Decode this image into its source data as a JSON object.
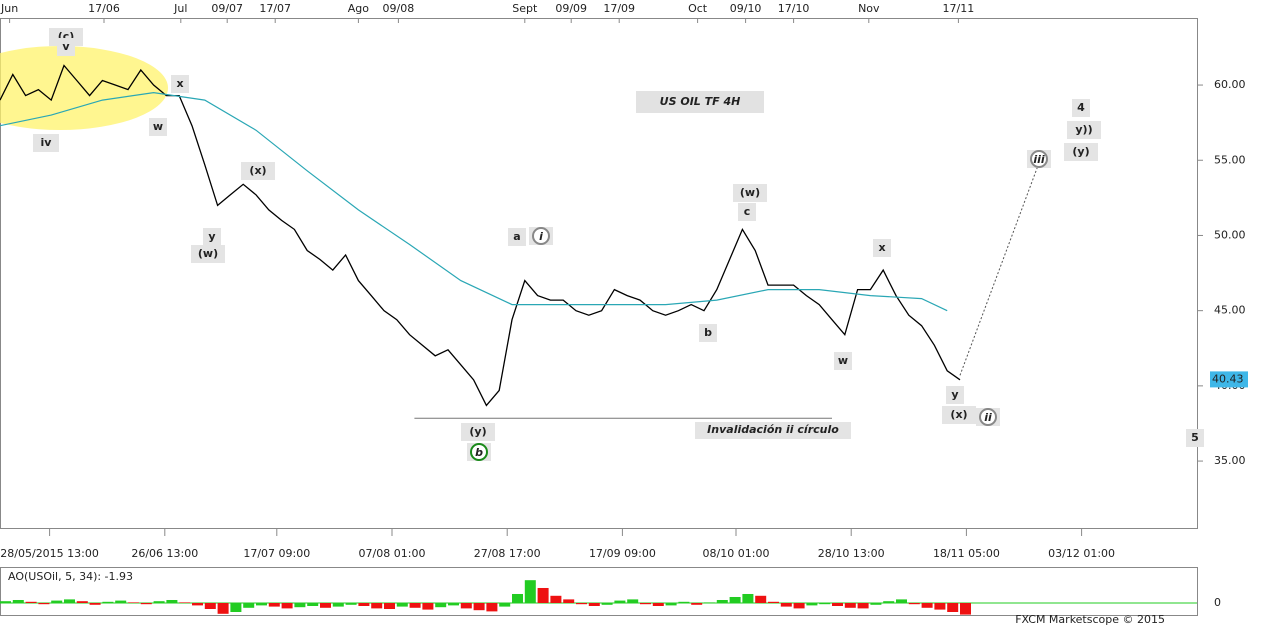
{
  "chart_data": [
    {
      "type": "line",
      "title": "US OIL TF 4H",
      "title_color": "#1a1acc",
      "series": [
        {
          "color": "#000000",
          "width": 1.3,
          "x": [
            0,
            8,
            16,
            24,
            32,
            40,
            48,
            56,
            64,
            72,
            80,
            88,
            96,
            104,
            112,
            120,
            128,
            136,
            144,
            152,
            160,
            168,
            176,
            184,
            192,
            200,
            208,
            216,
            224,
            232,
            240,
            248,
            256,
            264,
            272,
            280,
            288,
            296,
            304,
            312,
            320,
            328,
            336,
            344,
            352,
            360,
            368,
            376,
            384,
            392,
            400,
            408,
            416,
            424,
            432,
            440,
            448,
            456,
            464,
            472,
            480,
            488,
            496,
            504,
            512,
            520,
            528,
            536,
            544,
            552,
            560,
            568,
            576,
            584,
            592,
            600
          ],
          "values": [
            59.0,
            60.7,
            59.3,
            59.7,
            59.0,
            61.3,
            60.3,
            59.3,
            60.3,
            60.0,
            59.7,
            61.0,
            60.0,
            59.3,
            59.3,
            57.3,
            54.7,
            52.0,
            52.7,
            53.4,
            52.7,
            51.7,
            51.0,
            50.4,
            49.0,
            48.4,
            47.7,
            48.7,
            47.0,
            46.0,
            45.0,
            44.4,
            43.4,
            42.7,
            42.0,
            42.4,
            41.4,
            40.4,
            38.7,
            39.7,
            44.4,
            47.0,
            46.0,
            45.7,
            45.7,
            45.0,
            44.7,
            45.0,
            46.4,
            46.0,
            45.7,
            45.0,
            44.7,
            45.0,
            45.4,
            45.0,
            46.4,
            48.4,
            50.4,
            49.0,
            46.7,
            46.7,
            46.7,
            46.0,
            45.4,
            44.4,
            43.4,
            46.4,
            46.4,
            47.7,
            46.0,
            44.7,
            44.0,
            42.7,
            41.0,
            40.4
          ]
        },
        {
          "color": "#2aa7b5",
          "width": 1.2,
          "x": [
            0,
            32,
            64,
            96,
            128,
            160,
            192,
            224,
            256,
            288,
            320,
            352,
            384,
            416,
            448,
            480,
            512,
            544,
            576,
            592
          ],
          "values": [
            57.3,
            58.0,
            59.0,
            59.5,
            59.0,
            57.0,
            54.3,
            51.7,
            49.4,
            47.0,
            45.4,
            45.4,
            45.4,
            45.4,
            45.7,
            46.4,
            46.4,
            46.0,
            45.8,
            45.0
          ]
        },
        {
          "color": "#555555",
          "width": 1,
          "dash": true,
          "x": [
            600,
            650
          ],
          "values": [
            40.7,
            55.0
          ]
        },
        {
          "color": "#777777",
          "width": 1,
          "x": [
            259,
            520
          ],
          "values": [
            37.85,
            37.85
          ]
        }
      ],
      "last_price": {
        "value": 40.43,
        "label": "40.43",
        "color": "#3fb7e8"
      },
      "xlim": [
        0,
        748
      ],
      "ylim": [
        30.55,
        63.66
      ],
      "yticks": [
        {
          "value": 35,
          "label": "35.00"
        },
        {
          "value": 40,
          "label": "40.00"
        },
        {
          "value": 45,
          "label": "45.00"
        },
        {
          "value": 50,
          "label": "50.00"
        },
        {
          "value": 55,
          "label": "55.00"
        },
        {
          "value": 60,
          "label": "60.00"
        }
      ],
      "xticks": [
        {
          "value": 31,
          "label": "28/05/2015 13:00"
        },
        {
          "value": 103,
          "label": "26/06 13:00"
        },
        {
          "value": 173,
          "label": "17/07 09:00"
        },
        {
          "value": 245,
          "label": "07/08 01:00"
        },
        {
          "value": 317,
          "label": "27/08 17:00"
        },
        {
          "value": 389,
          "label": "17/09 09:00"
        },
        {
          "value": 460,
          "label": "08/10 01:00"
        },
        {
          "value": 532,
          "label": "28/10 13:00"
        },
        {
          "value": 604,
          "label": "18/11 05:00"
        },
        {
          "value": 676,
          "label": "03/12 01:00"
        }
      ],
      "xticks_top": [
        {
          "value": 6,
          "label": "Jun"
        },
        {
          "value": 65,
          "label": "17/06"
        },
        {
          "value": 113,
          "label": "Jul"
        },
        {
          "value": 142,
          "label": "09/07"
        },
        {
          "value": 172,
          "label": "17/07"
        },
        {
          "value": 224,
          "label": "Ago"
        },
        {
          "value": 249,
          "label": "09/08"
        },
        {
          "value": 328,
          "label": "Sept"
        },
        {
          "value": 357,
          "label": "09/09"
        },
        {
          "value": 387,
          "label": "17/09"
        },
        {
          "value": 436,
          "label": "Oct"
        },
        {
          "value": 466,
          "label": "09/10"
        },
        {
          "value": 496,
          "label": "17/10"
        },
        {
          "value": 543,
          "label": "Nov"
        },
        {
          "value": 599,
          "label": "17/11"
        }
      ],
      "annotations": [
        {
          "text": "(c)",
          "color": "#1a1acc"
        },
        {
          "text": "v",
          "color": "#7a1f7a"
        },
        {
          "text": "iv",
          "color": "#7a1f7a"
        },
        {
          "text": "x",
          "color": "#7a1f7a"
        },
        {
          "text": "w",
          "color": "#7a1f7a"
        },
        {
          "text": "(x)",
          "color": "#1a1acc"
        },
        {
          "text": "y",
          "color": "#7a1f7a"
        },
        {
          "text": "(w)",
          "color": "#1a1acc"
        },
        {
          "text": "a",
          "color": "#7a1f7a"
        },
        {
          "text": "i",
          "color": "#888888",
          "circled": true
        },
        {
          "text": "(y)",
          "color": "#1a1acc"
        },
        {
          "text": "b",
          "color": "#1a8a1a",
          "circled": true
        },
        {
          "text": "b",
          "color": "#7a1f7a"
        },
        {
          "text": "(w)",
          "color": "#1a1acc"
        },
        {
          "text": "c",
          "color": "#7a1f7a"
        },
        {
          "text": "x",
          "color": "#7a1f7a"
        },
        {
          "text": "w",
          "color": "#7a1f7a"
        },
        {
          "text": "y",
          "color": "#7a1f7a"
        },
        {
          "text": "(x)",
          "color": "#1a1acc"
        },
        {
          "text": "ii",
          "color": "#888888",
          "circled": true
        },
        {
          "text": "iii",
          "color": "#888888",
          "circled": true
        },
        {
          "text": "4",
          "color": "#f07020"
        },
        {
          "text": "y))",
          "color": "#1a8a1a"
        },
        {
          "text": "(y)",
          "color": "#1a1acc"
        },
        {
          "text": "5",
          "color": "#f07020"
        },
        {
          "text": "Invalidación ii círculo",
          "color": "#777777"
        }
      ]
    },
    {
      "type": "bar",
      "label": "AO(USOil, 5, 34): -1.93",
      "up_color": "#22cc22",
      "down_color": "#ee1111",
      "x": [
        0,
        8,
        16,
        24,
        32,
        40,
        48,
        56,
        64,
        72,
        80,
        88,
        96,
        104,
        112,
        120,
        128,
        136,
        144,
        152,
        160,
        168,
        176,
        184,
        192,
        200,
        208,
        216,
        224,
        232,
        240,
        248,
        256,
        264,
        272,
        280,
        288,
        296,
        304,
        312,
        320,
        328,
        336,
        344,
        352,
        360,
        368,
        376,
        384,
        392,
        400,
        408,
        416,
        424,
        432,
        440,
        448,
        456,
        464,
        472,
        480,
        488,
        496,
        504,
        512,
        520,
        528,
        536,
        544,
        552,
        560,
        568,
        576,
        584,
        592,
        600
      ],
      "values": [
        0.3,
        0.5,
        0.2,
        -0.2,
        0.4,
        0.6,
        0.3,
        -0.3,
        0.2,
        0.4,
        0.1,
        -0.2,
        0.3,
        0.5,
        0.1,
        -0.4,
        -1.0,
        -1.8,
        -1.5,
        -0.8,
        -0.4,
        -0.6,
        -0.9,
        -0.7,
        -0.5,
        -0.8,
        -0.6,
        -0.3,
        -0.5,
        -0.9,
        -1.0,
        -0.6,
        -0.8,
        -1.1,
        -0.7,
        -0.4,
        -0.9,
        -1.2,
        -1.4,
        -0.6,
        1.5,
        3.8,
        2.5,
        1.2,
        0.6,
        -0.2,
        -0.5,
        -0.3,
        0.4,
        0.6,
        -0.2,
        -0.5,
        -0.4,
        0.2,
        -0.3,
        0.1,
        0.5,
        1.0,
        1.5,
        1.2,
        0.2,
        -0.6,
        -0.9,
        -0.4,
        -0.2,
        -0.5,
        -0.8,
        -0.9,
        -0.3,
        0.3,
        0.6,
        -0.2,
        -0.8,
        -1.1,
        -1.5,
        -1.93
      ],
      "xlim": [
        0,
        748
      ],
      "ylim": [
        -2,
        5.83
      ],
      "yticks": [
        0
      ],
      "zero_color": "#22cc22",
      "credit": "FXCM Marketscope © 2015"
    }
  ]
}
